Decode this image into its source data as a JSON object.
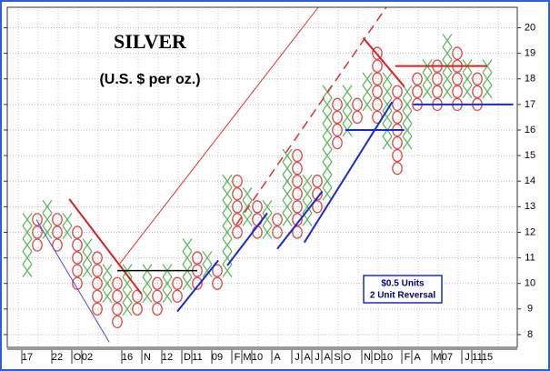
{
  "chart_data": {
    "type": "point_figure",
    "title": "SILVER",
    "subtitle": "(U.S.  $ per oz.)",
    "legend_lines": [
      "$0.5 Units",
      "2 Unit Reversal"
    ],
    "box_size": 0.5,
    "x_color": "#5fb85f",
    "o_color": "#e04848",
    "ylim": [
      7.5,
      20.8
    ],
    "yticks": [
      8,
      9,
      10,
      11,
      12,
      13,
      14,
      15,
      16,
      17,
      18,
      19,
      20
    ],
    "grid": true,
    "columns": [
      {
        "type": "X",
        "low": 10.5,
        "high": 12.5,
        "label": "17"
      },
      {
        "type": "O",
        "low": 11.5,
        "high": 12.5,
        "label": null
      },
      {
        "type": "X",
        "low": 12,
        "high": 13,
        "label": null
      },
      {
        "type": "O",
        "low": 11.5,
        "high": 12.5,
        "label": "22"
      },
      {
        "type": "X",
        "low": 12,
        "high": 12.5,
        "label": null
      },
      {
        "type": "O",
        "low": 10,
        "high": 12,
        "label": "O"
      },
      {
        "type": "X",
        "low": 10.5,
        "high": 11.5,
        "label": "02"
      },
      {
        "type": "O",
        "low": 9,
        "high": 11,
        "label": null
      },
      {
        "type": "X",
        "low": 9.5,
        "high": 10.5,
        "label": null
      },
      {
        "type": "O",
        "low": 8.5,
        "high": 10,
        "label": null
      },
      {
        "type": "X",
        "low": 9,
        "high": 10.5,
        "label": "16"
      },
      {
        "type": "O",
        "low": 9,
        "high": 9.5,
        "label": null
      },
      {
        "type": "X",
        "low": 9.5,
        "high": 10.5,
        "label": "N"
      },
      {
        "type": "O",
        "low": 9,
        "high": 10,
        "label": null
      },
      {
        "type": "X",
        "low": 9.5,
        "high": 10.5,
        "label": "12"
      },
      {
        "type": "O",
        "low": 9.5,
        "high": 10,
        "label": null
      },
      {
        "type": "X",
        "low": 10,
        "high": 11.5,
        "label": "D"
      },
      {
        "type": "O",
        "low": 10,
        "high": 11,
        "label": "11"
      },
      {
        "type": "X",
        "low": 10.5,
        "high": 11,
        "label": null
      },
      {
        "type": "O",
        "low": 10,
        "high": 10.5,
        "label": "09"
      },
      {
        "type": "X",
        "low": 10.5,
        "high": 14,
        "label": null
      },
      {
        "type": "O",
        "low": 12,
        "high": 14,
        "label": "F"
      },
      {
        "type": "X",
        "low": 12.5,
        "high": 13.5,
        "label": "M"
      },
      {
        "type": "O",
        "low": 12,
        "high": 13,
        "label": "10"
      },
      {
        "type": "X",
        "low": 12,
        "high": 13,
        "label": null
      },
      {
        "type": "O",
        "low": 12,
        "high": 12.5,
        "label": "A"
      },
      {
        "type": "X",
        "low": 12.5,
        "high": 15,
        "label": null
      },
      {
        "type": "O",
        "low": 12,
        "high": 15,
        "label": "J"
      },
      {
        "type": "X",
        "low": 12.5,
        "high": 14,
        "label": "A"
      },
      {
        "type": "O",
        "low": 13,
        "high": 14,
        "label": "J"
      },
      {
        "type": "X",
        "low": 13.5,
        "high": 17.5,
        "label": "A"
      },
      {
        "type": "O",
        "low": 15.5,
        "high": 17,
        "label": "S"
      },
      {
        "type": "X",
        "low": 16,
        "high": 17.5,
        "label": "O"
      },
      {
        "type": "O",
        "low": 16.5,
        "high": 17,
        "label": null
      },
      {
        "type": "X",
        "low": 17,
        "high": 18,
        "label": "N"
      },
      {
        "type": "O",
        "low": 16.5,
        "high": 19,
        "label": "D"
      },
      {
        "type": "X",
        "low": 15.5,
        "high": 18,
        "label": "10"
      },
      {
        "type": "O",
        "low": 14.5,
        "high": 17.5,
        "label": null
      },
      {
        "type": "X",
        "low": 15.5,
        "high": 17.5,
        "label": "F"
      },
      {
        "type": "O",
        "low": 17,
        "high": 18,
        "label": "A"
      },
      {
        "type": "X",
        "low": 17.5,
        "high": 18.5,
        "label": null
      },
      {
        "type": "O",
        "low": 17,
        "high": 18.5,
        "label": "M"
      },
      {
        "type": "X",
        "low": 17.5,
        "high": 19.5,
        "label": "07"
      },
      {
        "type": "O",
        "low": 17,
        "high": 19,
        "label": null
      },
      {
        "type": "X",
        "low": 17.5,
        "high": 18.5,
        "label": "J"
      },
      {
        "type": "O",
        "low": 17,
        "high": 18,
        "label": "11"
      },
      {
        "type": "X",
        "low": 17.5,
        "high": 18.5,
        "label": "15"
      }
    ],
    "trendlines": [
      {
        "color": "#4a4ad8",
        "width": 1,
        "dashed": false,
        "x": [
          0.9,
          8.2
        ],
        "y": [
          12.5,
          7.7
        ]
      },
      {
        "color": "#d82020",
        "width": 2,
        "dashed": false,
        "x": [
          4.2,
          11.4
        ],
        "y": [
          13.3,
          9.6
        ]
      },
      {
        "color": "#e03030",
        "width": 1,
        "dashed": false,
        "x": [
          9.1,
          29.1
        ],
        "y": [
          10.7,
          20.8
        ]
      },
      {
        "color": "#e03030",
        "width": 1.5,
        "dashed": true,
        "x": [
          20.9,
          35.9
        ],
        "y": [
          12.3,
          20.8
        ]
      },
      {
        "color": "#000000",
        "width": 1.5,
        "dashed": false,
        "x": [
          9,
          17
        ],
        "y": [
          10.5,
          10.5
        ]
      },
      {
        "color": "#1a2ad0",
        "width": 2,
        "dashed": false,
        "x": [
          15,
          19.1
        ],
        "y": [
          8.9,
          10.9
        ]
      },
      {
        "color": "#1a2ad0",
        "width": 2,
        "dashed": false,
        "x": [
          20,
          24
        ],
        "y": [
          10.7,
          12.75
        ]
      },
      {
        "color": "#1a2ad0",
        "width": 2,
        "dashed": false,
        "x": [
          25,
          29.5
        ],
        "y": [
          11.35,
          13.6
        ]
      },
      {
        "color": "#1a2ad0",
        "width": 2,
        "dashed": false,
        "x": [
          27.7,
          36.5
        ],
        "y": [
          11.6,
          17.1
        ]
      },
      {
        "color": "#1a2ad0",
        "width": 2,
        "dashed": false,
        "x": [
          31.8,
          37.7
        ],
        "y": [
          16,
          16
        ]
      },
      {
        "color": "#d82020",
        "width": 2,
        "dashed": false,
        "x": [
          33.6,
          37.7
        ],
        "y": [
          19.6,
          17.7
        ]
      },
      {
        "color": "#d82020",
        "width": 2,
        "dashed": false,
        "x": [
          36.8,
          46
        ],
        "y": [
          18.5,
          18.5
        ]
      },
      {
        "color": "#1a2ad0",
        "width": 2,
        "dashed": false,
        "x": [
          38.6,
          48.6
        ],
        "y": [
          17,
          17
        ]
      }
    ]
  }
}
